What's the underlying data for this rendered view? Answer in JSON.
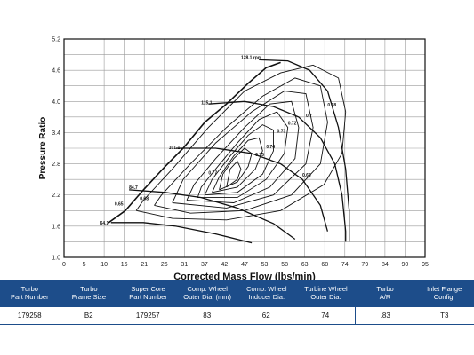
{
  "chart_data": {
    "type": "line",
    "xlabel": "Corrected Mass Flow (lbs/min)",
    "ylabel": "Pressure Ratio",
    "xlim": [
      0,
      100
    ],
    "ylim": [
      1.0,
      5.2
    ],
    "x_ticks": [
      "0",
      "5",
      "10",
      "16",
      "21",
      "26",
      "31",
      "37",
      "42",
      "47",
      "53",
      "58",
      "63",
      "68",
      "74",
      "79",
      "84",
      "90",
      "95"
    ],
    "y_ticks": [
      "1.0",
      "1.6",
      "2.2",
      "2.8",
      "3.4",
      "4.0",
      "4.6",
      "5.2"
    ],
    "grid": true,
    "surge_line": [
      [
        12,
        1.65
      ],
      [
        17,
        1.9
      ],
      [
        22,
        2.3
      ],
      [
        28,
        2.75
      ],
      [
        33,
        3.1
      ],
      [
        39,
        3.6
      ],
      [
        45,
        3.95
      ],
      [
        51,
        4.35
      ],
      [
        56,
        4.65
      ],
      [
        60,
        4.75
      ]
    ],
    "speed_lines": [
      {
        "name": "64.1",
        "points": [
          [
            13,
            1.67
          ],
          [
            22,
            1.67
          ],
          [
            31,
            1.6
          ],
          [
            42,
            1.45
          ],
          [
            52,
            1.28
          ]
        ]
      },
      {
        "name": "84.7",
        "points": [
          [
            18,
            2.3
          ],
          [
            28,
            2.25
          ],
          [
            38,
            2.15
          ],
          [
            48,
            1.95
          ],
          [
            58,
            1.65
          ],
          [
            64,
            1.35
          ]
        ]
      },
      {
        "name": "101.1",
        "points": [
          [
            31,
            3.1
          ],
          [
            42,
            3.1
          ],
          [
            52,
            3.0
          ],
          [
            60,
            2.8
          ],
          [
            66,
            2.5
          ],
          [
            71,
            2.0
          ],
          [
            73,
            1.5
          ]
        ]
      },
      {
        "name": "115.1",
        "points": [
          [
            40,
            3.95
          ],
          [
            50,
            4.0
          ],
          [
            58,
            3.9
          ],
          [
            65,
            3.7
          ],
          [
            71,
            3.3
          ],
          [
            75,
            2.8
          ],
          [
            77,
            2.2
          ],
          [
            78,
            1.5
          ],
          [
            78,
            1.3
          ]
        ]
      },
      {
        "name": "128.1 rpm",
        "points": [
          [
            54,
            4.8
          ],
          [
            62,
            4.78
          ],
          [
            68,
            4.6
          ],
          [
            73,
            4.2
          ],
          [
            76,
            3.5
          ],
          [
            78,
            2.7
          ],
          [
            79,
            1.9
          ],
          [
            79,
            1.3
          ]
        ]
      }
    ],
    "efficiency_islands": [
      {
        "name": "0.65",
        "points": [
          [
            20,
            1.9
          ],
          [
            30,
            1.75
          ],
          [
            45,
            1.72
          ],
          [
            60,
            1.9
          ],
          [
            72,
            2.4
          ],
          [
            77,
            3.0
          ],
          [
            78,
            3.8
          ],
          [
            76,
            4.45
          ],
          [
            69,
            4.7
          ],
          [
            60,
            4.55
          ],
          [
            50,
            4.2
          ],
          [
            40,
            3.5
          ],
          [
            30,
            2.7
          ],
          [
            22,
            2.1
          ],
          [
            20,
            1.9
          ]
        ]
      },
      {
        "name": "0.68",
        "points": [
          [
            25,
            2.0
          ],
          [
            35,
            1.85
          ],
          [
            50,
            1.9
          ],
          [
            63,
            2.2
          ],
          [
            71,
            2.8
          ],
          [
            73,
            3.6
          ],
          [
            71,
            4.3
          ],
          [
            64,
            4.45
          ],
          [
            55,
            4.1
          ],
          [
            45,
            3.5
          ],
          [
            35,
            2.8
          ],
          [
            27,
            2.2
          ],
          [
            25,
            2.0
          ]
        ]
      },
      {
        "name": "0.7",
        "points": [
          [
            30,
            2.05
          ],
          [
            45,
            1.95
          ],
          [
            58,
            2.2
          ],
          [
            67,
            2.8
          ],
          [
            69,
            3.5
          ],
          [
            67,
            4.15
          ],
          [
            61,
            4.2
          ],
          [
            52,
            3.8
          ],
          [
            42,
            3.2
          ],
          [
            33,
            2.5
          ],
          [
            30,
            2.05
          ]
        ]
      },
      {
        "name": "0.72",
        "points": [
          [
            34,
            2.1
          ],
          [
            47,
            2.05
          ],
          [
            57,
            2.35
          ],
          [
            64,
            2.9
          ],
          [
            65,
            3.5
          ],
          [
            63,
            4.0
          ],
          [
            57,
            3.95
          ],
          [
            50,
            3.5
          ],
          [
            42,
            2.9
          ],
          [
            36,
            2.4
          ],
          [
            34,
            2.1
          ]
        ]
      },
      {
        "name": "0.73",
        "points": [
          [
            37,
            2.15
          ],
          [
            48,
            2.15
          ],
          [
            56,
            2.5
          ],
          [
            61,
            3.0
          ],
          [
            62,
            3.5
          ],
          [
            59,
            3.8
          ],
          [
            54,
            3.65
          ],
          [
            48,
            3.2
          ],
          [
            42,
            2.7
          ],
          [
            38,
            2.35
          ],
          [
            37,
            2.15
          ]
        ]
      },
      {
        "name": "0.74",
        "points": [
          [
            39,
            2.2
          ],
          [
            48,
            2.25
          ],
          [
            55,
            2.6
          ],
          [
            58,
            3.05
          ],
          [
            58,
            3.45
          ],
          [
            55,
            3.55
          ],
          [
            51,
            3.35
          ],
          [
            46,
            2.95
          ],
          [
            41,
            2.5
          ],
          [
            39,
            2.2
          ]
        ]
      },
      {
        "name": "0.75",
        "points": [
          [
            41,
            2.25
          ],
          [
            48,
            2.35
          ],
          [
            53,
            2.7
          ],
          [
            55,
            3.05
          ],
          [
            54,
            3.3
          ],
          [
            51,
            3.25
          ],
          [
            47,
            2.95
          ],
          [
            43,
            2.55
          ],
          [
            41,
            2.25
          ]
        ]
      },
      {
        "name": "0.76",
        "points": [
          [
            43,
            2.3
          ],
          [
            48,
            2.45
          ],
          [
            51,
            2.75
          ],
          [
            52,
            3.0
          ],
          [
            50,
            3.1
          ],
          [
            47,
            2.9
          ],
          [
            44,
            2.6
          ],
          [
            43,
            2.3
          ]
        ]
      },
      {
        "name": "0.77",
        "points": [
          [
            45,
            2.35
          ],
          [
            48,
            2.5
          ],
          [
            49,
            2.7
          ],
          [
            48,
            2.85
          ],
          [
            46,
            2.7
          ],
          [
            45,
            2.35
          ]
        ]
      }
    ],
    "speed_label_positions": [
      [
        10,
        1.67
      ],
      [
        18,
        2.35
      ],
      [
        29,
        3.12
      ],
      [
        38,
        3.98
      ],
      [
        49,
        4.85
      ]
    ],
    "eff_label_positions": [
      [
        14,
        2.0
      ],
      [
        21,
        2.1
      ],
      [
        73,
        3.9
      ],
      [
        67,
        3.7
      ],
      [
        62,
        3.55
      ],
      [
        59,
        3.4
      ],
      [
        56,
        3.1
      ],
      [
        53,
        2.95
      ],
      [
        40,
        2.6
      ],
      [
        66,
        2.55
      ]
    ]
  },
  "table": {
    "headers": [
      "Turbo\nPart Number",
      "Turbo\nFrame Size",
      "Super Core\nPart Number",
      "Comp. Wheel\nOuter Dia. (mm)",
      "Comp. Wheel\nInducer Dia.",
      "Turbine Wheel\nOuter Dia.",
      "Turbo\nA/R",
      "Inlet Flange\nConfig."
    ],
    "row": [
      "179258",
      "B2",
      "179257",
      "83",
      "62",
      "74",
      ".83",
      "T3"
    ]
  }
}
